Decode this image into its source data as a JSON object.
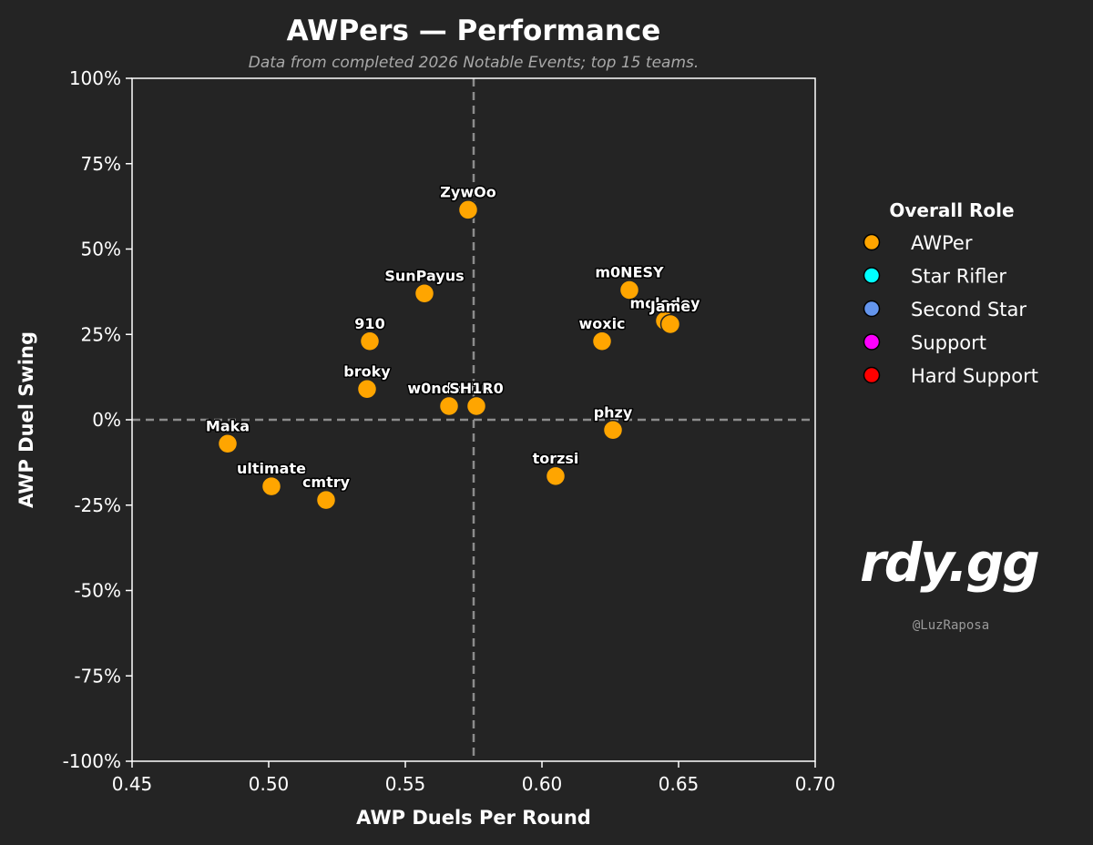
{
  "chart_data": {
    "type": "scatter",
    "title": "AWPers — Performance",
    "subtitle": "Data from completed 2026 Notable Events; top 15 teams.",
    "xlabel": "AWP Duels Per Round",
    "ylabel": "AWP Duel Swing",
    "xlim": [
      0.45,
      0.7
    ],
    "ylim": [
      -1.0,
      1.0
    ],
    "xticks": [
      0.45,
      0.5,
      0.55,
      0.6,
      0.65,
      0.7
    ],
    "xtick_labels": [
      "0.45",
      "0.50",
      "0.55",
      "0.60",
      "0.65",
      "0.70"
    ],
    "yticks": [
      1.0,
      0.75,
      0.5,
      0.25,
      0.0,
      -0.25,
      -0.5,
      -0.75,
      -1.0
    ],
    "ytick_labels": [
      "100%",
      "75%",
      "50%",
      "25%",
      "0%",
      "-25%",
      "-50%",
      "-75%",
      "-100%"
    ],
    "reference_lines": {
      "x": 0.575,
      "y": 0.0
    },
    "points": [
      {
        "name": "ZywOo",
        "x": 0.573,
        "y": 0.615,
        "role": "AWPer"
      },
      {
        "name": "SunPayus",
        "x": 0.557,
        "y": 0.37,
        "role": "AWPer"
      },
      {
        "name": "910",
        "x": 0.537,
        "y": 0.23,
        "role": "AWPer"
      },
      {
        "name": "broky",
        "x": 0.536,
        "y": 0.09,
        "role": "AWPer"
      },
      {
        "name": "w0nderful",
        "x": 0.566,
        "y": 0.04,
        "role": "AWPer"
      },
      {
        "name": "SH1R0",
        "x": 0.576,
        "y": 0.04,
        "role": "AWPer"
      },
      {
        "name": "m0NESY",
        "x": 0.632,
        "y": 0.38,
        "role": "AWPer"
      },
      {
        "name": "molodoy",
        "x": 0.645,
        "y": 0.29,
        "role": "AWPer"
      },
      {
        "name": "Jame",
        "x": 0.647,
        "y": 0.28,
        "role": "AWPer"
      },
      {
        "name": "woxic",
        "x": 0.622,
        "y": 0.23,
        "role": "AWPer"
      },
      {
        "name": "phzy",
        "x": 0.626,
        "y": -0.03,
        "role": "AWPer"
      },
      {
        "name": "torzsi",
        "x": 0.605,
        "y": -0.165,
        "role": "AWPer"
      },
      {
        "name": "Maka",
        "x": 0.485,
        "y": -0.07,
        "role": "AWPer"
      },
      {
        "name": "ultimate",
        "x": 0.501,
        "y": -0.195,
        "role": "AWPer"
      },
      {
        "name": "cmtry",
        "x": 0.521,
        "y": -0.235,
        "role": "AWPer"
      }
    ],
    "legend": {
      "title": "Overall Role",
      "position": "right",
      "entries": [
        {
          "label": "AWPer",
          "color": "#ffa500"
        },
        {
          "label": "Star Rifler",
          "color": "#00ffff"
        },
        {
          "label": "Second Star",
          "color": "#6495ed"
        },
        {
          "label": "Support",
          "color": "#ff00ff"
        },
        {
          "label": "Hard Support",
          "color": "#ff0000"
        }
      ]
    }
  },
  "branding": {
    "logo_text": "rdy.gg",
    "handle": "@LuzRaposa"
  },
  "colors": {
    "background": "#242424",
    "axes": "#ffffff",
    "reference": "#8c8c8c",
    "point": "#ffa500",
    "point_edge": "#242424"
  }
}
